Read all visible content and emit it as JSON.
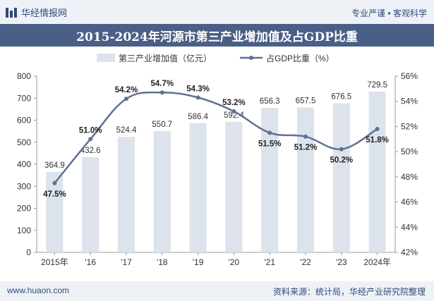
{
  "header": {
    "brand": "华经情报网",
    "tagline": "专业严谨 • 客观科学"
  },
  "title": "2015-2024年河源市第三产业增加值及占GDP比重",
  "footer": {
    "website": "www.huaon.com",
    "source": "资料来源：统计局，华经产业研究院整理"
  },
  "colors": {
    "bar": "#dde3ec",
    "line": "#5f7194",
    "title_bg": "#4a5f86",
    "header_bg": "#eef2f7"
  },
  "chart_data": {
    "type": "bar",
    "categories": [
      "2015年",
      "'16",
      "'17",
      "'18",
      "'19",
      "'20",
      "'21",
      "'22",
      "'23",
      "2024年"
    ],
    "series": [
      {
        "name": "第三产业增加值（亿元）",
        "type": "bar",
        "axis": "left",
        "values": [
          364.9,
          432.6,
          524.4,
          550.7,
          586.4,
          592.4,
          656.3,
          657.5,
          676.5,
          729.5
        ],
        "labels": [
          "364.9",
          "432.6",
          "524.4",
          "550.7",
          "586.4",
          "592.4",
          "656.3",
          "657.5",
          "676.5",
          "729.5"
        ]
      },
      {
        "name": "占GDP比重（%）",
        "type": "line",
        "axis": "right",
        "values": [
          47.5,
          51.0,
          54.2,
          54.7,
          54.3,
          53.2,
          51.5,
          51.2,
          50.2,
          51.8
        ],
        "labels": [
          "47.5%",
          "51.0%",
          "54.2%",
          "54.7%",
          "54.3%",
          "53.2%",
          "51.5%",
          "51.2%",
          "50.2%",
          "51.8%"
        ]
      }
    ],
    "y_left": {
      "min": 0,
      "max": 800,
      "ticks": [
        "0",
        "100",
        "200",
        "300",
        "400",
        "500",
        "600",
        "700",
        "800"
      ]
    },
    "y_right": {
      "min": 42,
      "max": 56,
      "ticks": [
        "42%",
        "44%",
        "46%",
        "48%",
        "50%",
        "52%",
        "54%",
        "56%"
      ]
    },
    "legend_position": "top-center",
    "grid": false
  }
}
